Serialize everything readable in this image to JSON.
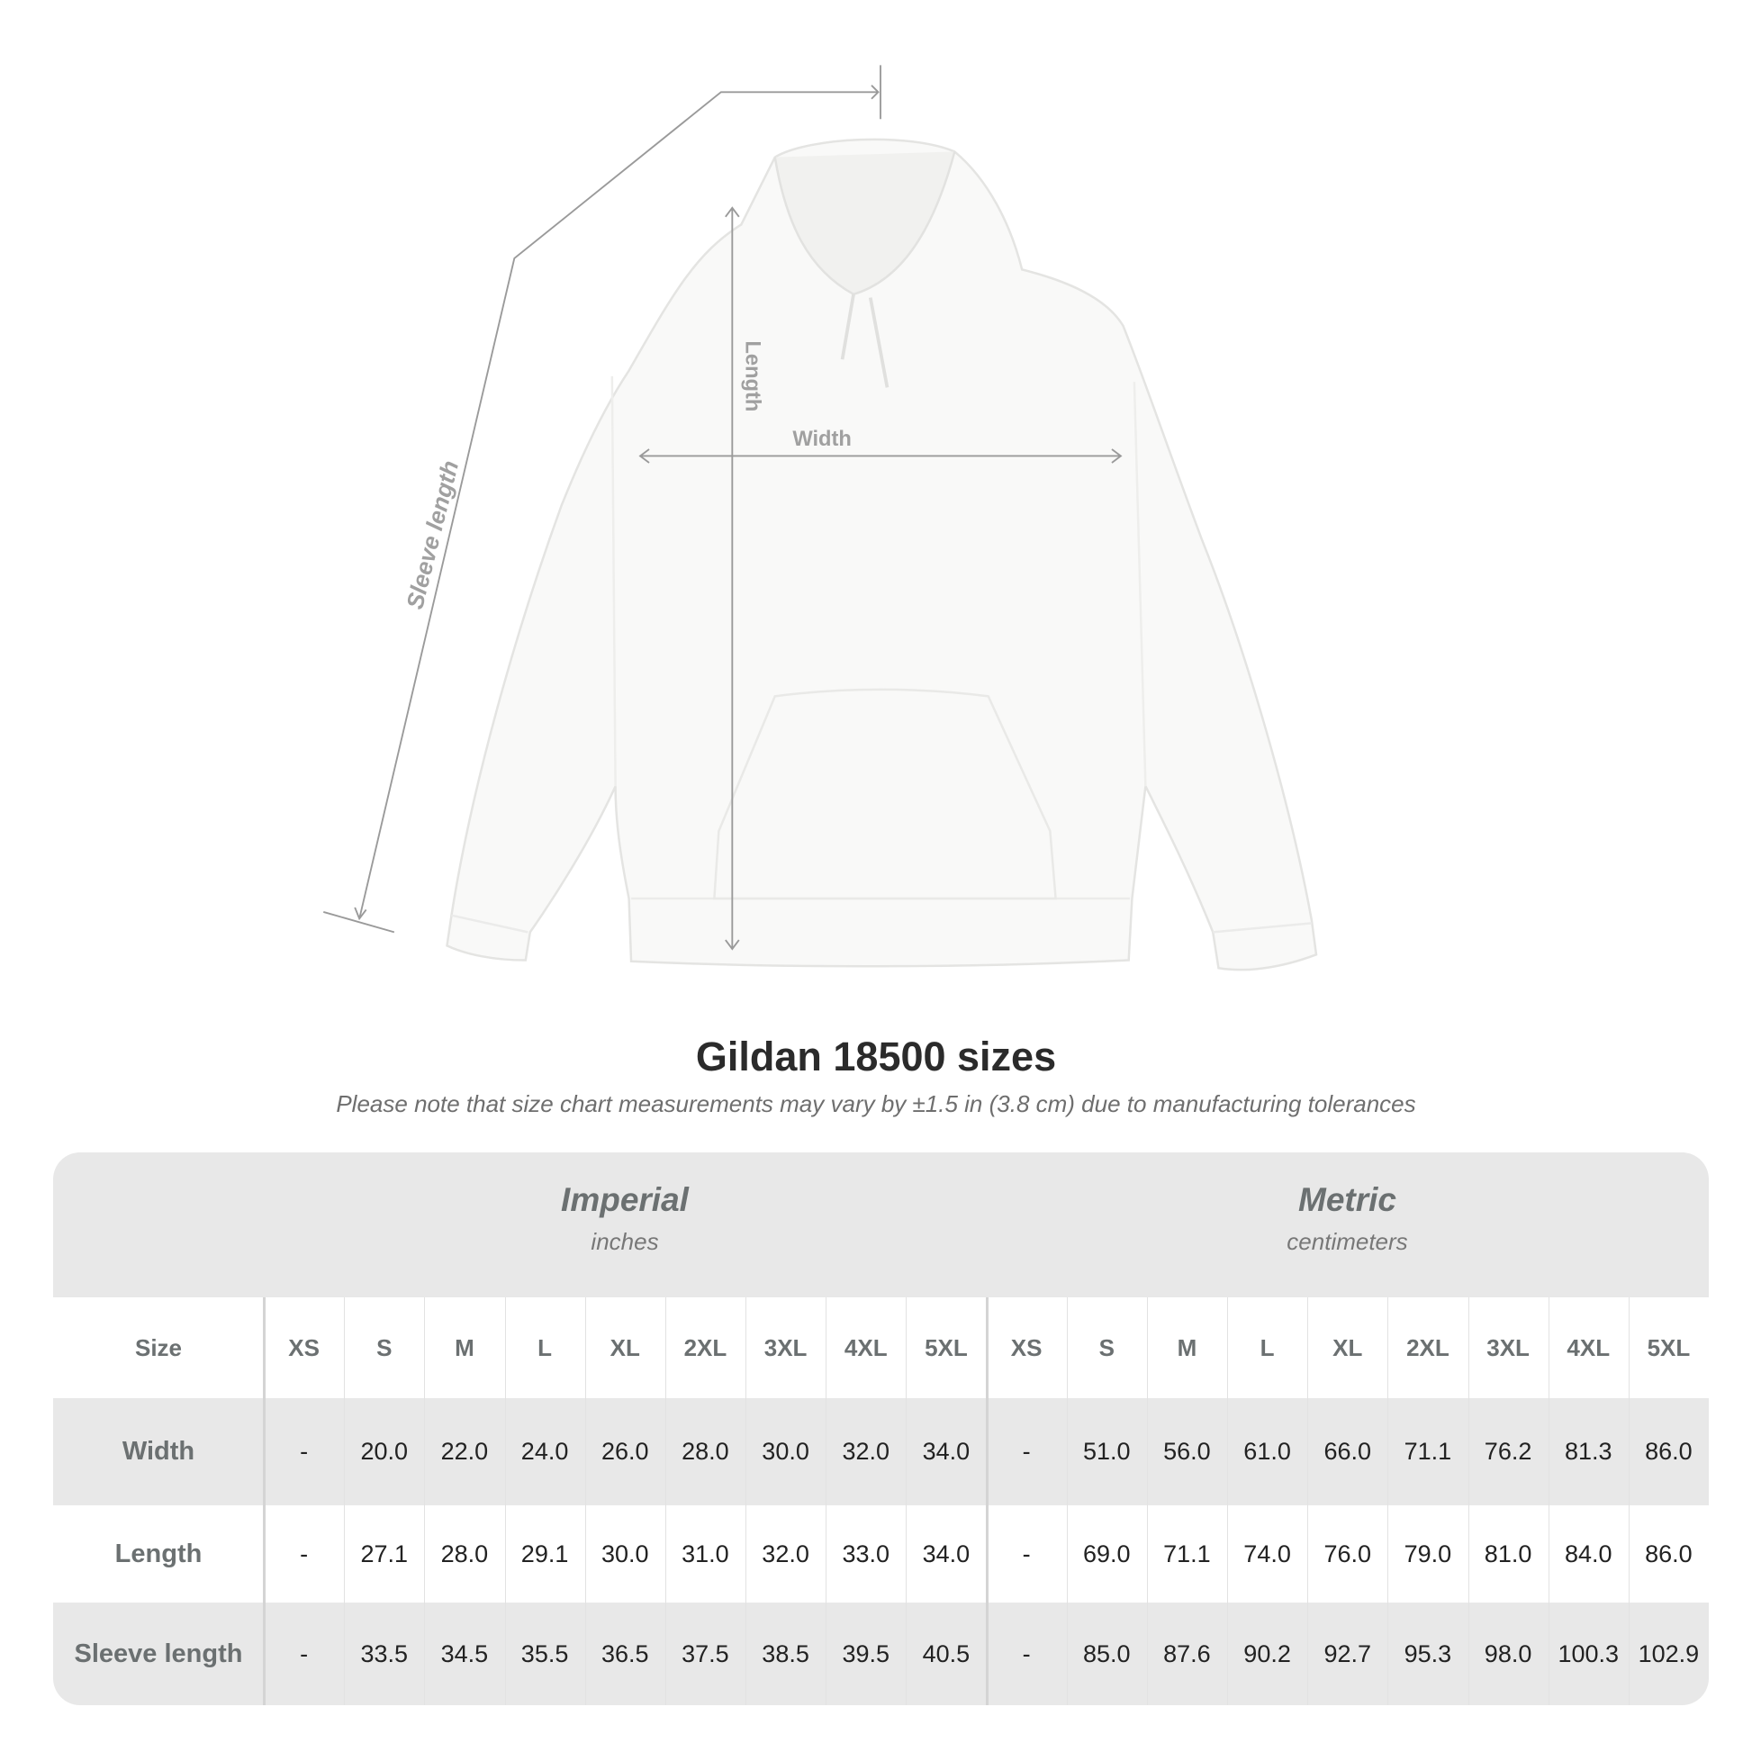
{
  "diagram": {
    "labels": {
      "sleeve": "Sleeve length",
      "length": "Length",
      "width": "Width"
    },
    "line_color": "#9a9a9a"
  },
  "title": "Gildan 18500 sizes",
  "subtitle": "Please note that size chart measurements may vary by ±1.5 in (3.8 cm) due to manufacturing tolerances",
  "table": {
    "imperial": {
      "name": "Imperial",
      "unit": "inches"
    },
    "metric": {
      "name": "Metric",
      "unit": "centimeters"
    },
    "size_label": "Size",
    "sizes": [
      "XS",
      "S",
      "M",
      "L",
      "XL",
      "2XL",
      "3XL",
      "4XL",
      "5XL"
    ],
    "rows": [
      {
        "label": "Width",
        "imperial": [
          "-",
          "20.0",
          "22.0",
          "24.0",
          "26.0",
          "28.0",
          "30.0",
          "32.0",
          "34.0"
        ],
        "metric": [
          "-",
          "51.0",
          "56.0",
          "61.0",
          "66.0",
          "71.1",
          "76.2",
          "81.3",
          "86.0"
        ]
      },
      {
        "label": "Length",
        "imperial": [
          "-",
          "27.1",
          "28.0",
          "29.1",
          "30.0",
          "31.0",
          "32.0",
          "33.0",
          "34.0"
        ],
        "metric": [
          "-",
          "69.0",
          "71.1",
          "74.0",
          "76.0",
          "79.0",
          "81.0",
          "84.0",
          "86.0"
        ]
      },
      {
        "label": "Sleeve length",
        "imperial": [
          "-",
          "33.5",
          "34.5",
          "35.5",
          "36.5",
          "37.5",
          "38.5",
          "39.5",
          "40.5"
        ],
        "metric": [
          "-",
          "85.0",
          "87.6",
          "90.2",
          "92.7",
          "95.3",
          "98.0",
          "100.3",
          "102.9"
        ]
      }
    ],
    "colors": {
      "band": "#e8e8e8",
      "label": "#6b7071",
      "value": "#222222"
    }
  }
}
